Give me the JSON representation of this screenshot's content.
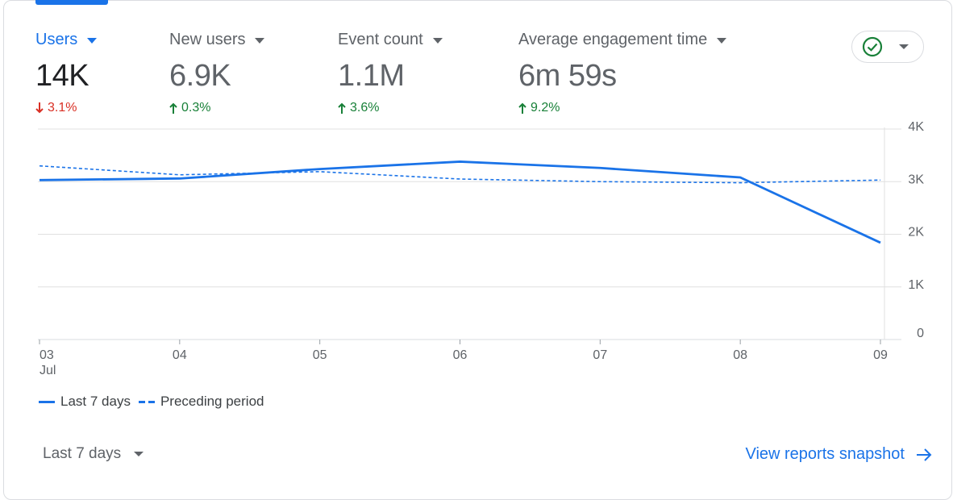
{
  "metrics": [
    {
      "label": "Users",
      "value": "14K",
      "change": "3.1%",
      "direction": "down",
      "active": true
    },
    {
      "label": "New users",
      "value": "6.9K",
      "change": "0.3%",
      "direction": "up",
      "active": false
    },
    {
      "label": "Event count",
      "value": "1.1M",
      "change": "3.6%",
      "direction": "up",
      "active": false
    },
    {
      "label": "Average engagement time",
      "value": "6m 59s",
      "change": "9.2%",
      "direction": "up",
      "active": false
    }
  ],
  "status_icon": "check-circle-icon",
  "chart_data": {
    "type": "line",
    "categories": [
      "03",
      "04",
      "05",
      "06",
      "07",
      "08",
      "09"
    ],
    "category_sublabel": "Jul",
    "series": [
      {
        "name": "Last 7 days",
        "style": "solid",
        "values": [
          3030,
          3060,
          3240,
          3380,
          3260,
          3080,
          1840
        ]
      },
      {
        "name": "Preceding period",
        "style": "dashed",
        "values": [
          3300,
          3130,
          3190,
          3050,
          3000,
          2980,
          3030
        ]
      }
    ],
    "y_ticks": [
      0,
      1000,
      2000,
      3000,
      4000
    ],
    "y_tick_labels": [
      "0",
      "1K",
      "2K",
      "3K",
      "4K"
    ],
    "ylim": [
      0,
      4000
    ],
    "grid": true,
    "y_axis_position": "right",
    "legend_position": "bottom-left",
    "colors": {
      "line": "#1a73e8",
      "grid": "#e0e0e0",
      "axis": "#dadce0"
    }
  },
  "legend": {
    "current": "Last 7 days",
    "previous": "Preceding period"
  },
  "footer": {
    "date_range": "Last 7 days",
    "view_link": "View reports snapshot"
  },
  "colors": {
    "accent": "#1a73e8",
    "down": "#d93025",
    "up": "#188038"
  }
}
